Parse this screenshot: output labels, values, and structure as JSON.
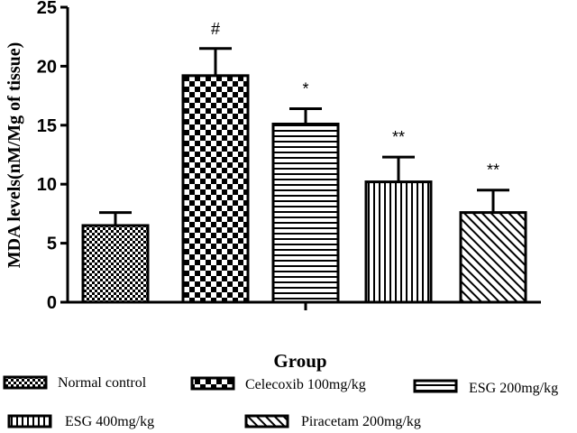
{
  "chart_data": {
    "type": "bar",
    "title": "",
    "xlabel": "Group",
    "ylabel": "MDA levels(nM/Mg of tissue)",
    "ylim": [
      0,
      25
    ],
    "yticks": [
      "0",
      "5",
      "10",
      "15",
      "20",
      "25"
    ],
    "grid": false,
    "legend_position": "bottom",
    "categories": [
      "Normal control",
      "Celecoxib 100mg/kg",
      "ESG 200mg/kg",
      "ESG 400mg/kg",
      "Piracetam 200mg/kg"
    ],
    "values": [
      6.5,
      19.2,
      15.1,
      10.2,
      7.6
    ],
    "errors": [
      1.1,
      2.3,
      1.3,
      2.1,
      1.9
    ],
    "annotations": [
      "",
      "#",
      "*",
      "**",
      "**"
    ]
  }
}
